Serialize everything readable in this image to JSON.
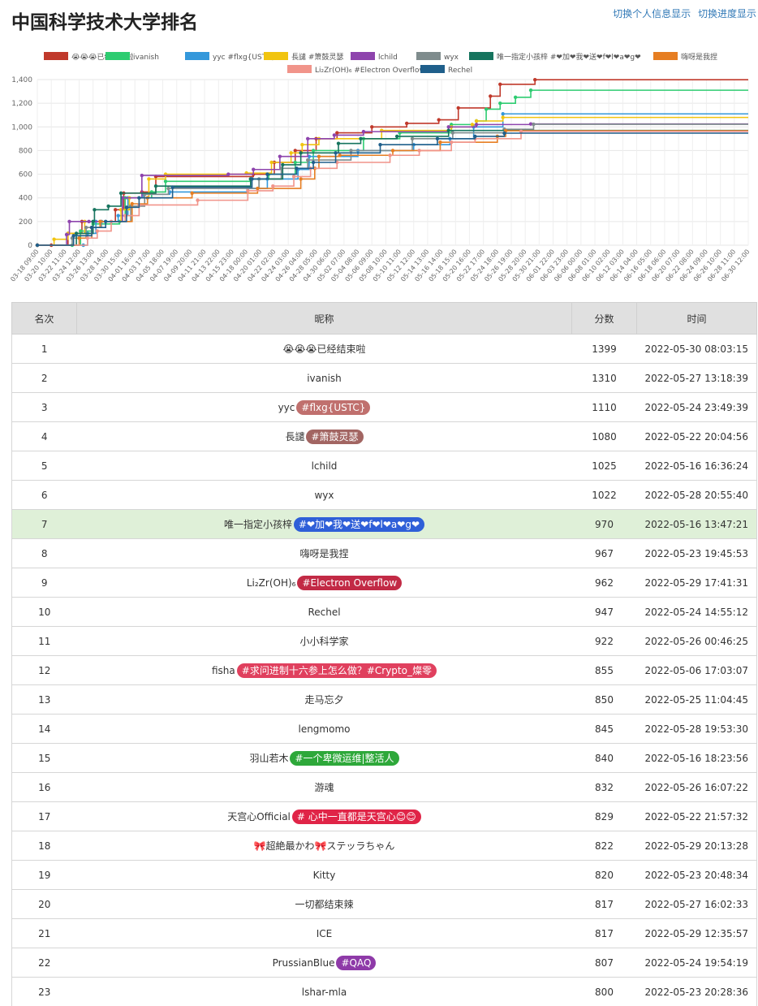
{
  "header": {
    "title": "中国科学技术大学排名",
    "link_info": "切换个人信息显示",
    "link_progress": "切换进度显示"
  },
  "table": {
    "columns": [
      "名次",
      "昵称",
      "分数",
      "时间"
    ],
    "rows": [
      {
        "rank": "1",
        "name": "😭😭😭已经结束啦",
        "badge": "",
        "badge_color": "",
        "score": "1399",
        "time": "2022-05-30 08:03:15"
      },
      {
        "rank": "2",
        "name": "ivanish",
        "badge": "",
        "badge_color": "",
        "score": "1310",
        "time": "2022-05-27 13:18:39"
      },
      {
        "rank": "3",
        "name": "yyc",
        "badge": "#flxg{USTC}",
        "badge_color": "#c0706e",
        "score": "1110",
        "time": "2022-05-24 23:49:39"
      },
      {
        "rank": "4",
        "name": "長譴",
        "badge": "#箫鼓灵瑟",
        "badge_color": "#a26562",
        "score": "1080",
        "time": "2022-05-22 20:04:56"
      },
      {
        "rank": "5",
        "name": "lchild",
        "badge": "",
        "badge_color": "",
        "score": "1025",
        "time": "2022-05-16 16:36:24"
      },
      {
        "rank": "6",
        "name": "wyx",
        "badge": "",
        "badge_color": "",
        "score": "1022",
        "time": "2022-05-28 20:55:40"
      },
      {
        "rank": "7",
        "name": "唯一指定小孩梓",
        "badge": "#❤加❤我❤送❤f❤l❤a❤g❤",
        "badge_color": "#2f5fd8",
        "score": "970",
        "time": "2022-05-16 13:47:21",
        "highlight": true
      },
      {
        "rank": "8",
        "name": "嗨呀是我捏",
        "badge": "",
        "badge_color": "",
        "score": "967",
        "time": "2022-05-23 19:45:53"
      },
      {
        "rank": "9",
        "name": "Li₂Zr(OH)₆",
        "badge": "#Electron Overflow",
        "badge_color": "#c22a45",
        "score": "962",
        "time": "2022-05-29 17:41:31"
      },
      {
        "rank": "10",
        "name": "Rechel",
        "badge": "",
        "badge_color": "",
        "score": "947",
        "time": "2022-05-24 14:55:12"
      },
      {
        "rank": "11",
        "name": "小小科学家",
        "badge": "",
        "badge_color": "",
        "score": "922",
        "time": "2022-05-26 00:46:25"
      },
      {
        "rank": "12",
        "name": "fisha",
        "badge": "#求问进制十六参上怎么做？#Crypto_燦零",
        "badge_color": "#e0405e",
        "score": "855",
        "time": "2022-05-06 17:03:07"
      },
      {
        "rank": "13",
        "name": "走马忘夕",
        "badge": "",
        "badge_color": "",
        "score": "850",
        "time": "2022-05-25 11:04:45"
      },
      {
        "rank": "14",
        "name": "lengmomo",
        "badge": "",
        "badge_color": "",
        "score": "845",
        "time": "2022-05-28 19:53:30"
      },
      {
        "rank": "15",
        "name": "羽山若木",
        "badge": "#一个卑微运维|整活人",
        "badge_color": "#2ea83a",
        "score": "840",
        "time": "2022-05-16 18:23:56"
      },
      {
        "rank": "16",
        "name": "游魂",
        "badge": "",
        "badge_color": "",
        "score": "832",
        "time": "2022-05-26 16:07:22"
      },
      {
        "rank": "17",
        "name": "天宫心Official",
        "badge": "# 心中一直都是天宫心😊😊",
        "badge_color": "#e02447",
        "score": "829",
        "time": "2022-05-22 21:57:32"
      },
      {
        "rank": "18",
        "name": "🎀超絶最かわ🎀ステッラちゃん",
        "badge": "",
        "badge_color": "",
        "score": "822",
        "time": "2022-05-29 20:13:28"
      },
      {
        "rank": "19",
        "name": "Kitty",
        "badge": "",
        "badge_color": "",
        "score": "820",
        "time": "2022-05-23 20:48:34"
      },
      {
        "rank": "20",
        "name": "一切都结束辣",
        "badge": "",
        "badge_color": "",
        "score": "817",
        "time": "2022-05-27 16:02:33"
      },
      {
        "rank": "21",
        "name": "ICE",
        "badge": "",
        "badge_color": "",
        "score": "817",
        "time": "2022-05-29 12:35:57"
      },
      {
        "rank": "22",
        "name": "PrussianBlue",
        "badge": "#QAQ",
        "badge_color": "#8e3aa8",
        "score": "807",
        "time": "2022-05-24 19:54:19"
      },
      {
        "rank": "23",
        "name": "lshar-mla",
        "badge": "",
        "badge_color": "",
        "score": "800",
        "time": "2022-05-23 20:28:36"
      }
    ]
  },
  "chart_data": {
    "type": "line",
    "ylim": [
      0,
      1400
    ],
    "yticks": [
      "0",
      "200",
      "400",
      "600",
      "800",
      "1,000",
      "1,200",
      "1,400"
    ],
    "xticks": [
      "03-18 09:00",
      "03-20 10:00",
      "03-22 11:00",
      "03-24 12:00",
      "03-26 13:00",
      "03-28 14:00",
      "03-30 15:00",
      "04-01 16:00",
      "04-03 17:00",
      "04-05 18:00",
      "04-07 19:00",
      "04-09 20:00",
      "04-11 21:00",
      "04-13 22:00",
      "04-15 23:00",
      "04-18 00:00",
      "04-20 01:00",
      "04-22 02:00",
      "04-24 03:00",
      "04-26 04:00",
      "04-28 05:00",
      "04-30 06:00",
      "05-02 07:00",
      "05-04 08:00",
      "05-06 09:00",
      "05-08 10:00",
      "05-10 11:00",
      "05-12 12:00",
      "05-14 13:00",
      "05-16 14:00",
      "05-18 15:00",
      "05-20 16:00",
      "05-22 17:00",
      "05-24 18:00",
      "05-26 19:00",
      "05-28 20:00",
      "05-30 21:00",
      "06-01 22:00",
      "06-03 23:00",
      "06-06 00:00",
      "06-08 01:00",
      "06-10 02:00",
      "06-12 03:00",
      "06-14 04:00",
      "06-16 05:00",
      "06-18 06:00",
      "06-20 07:00",
      "06-22 08:00",
      "06-24 09:00",
      "06-26 10:00",
      "06-28 11:00",
      "06-30 12:00"
    ],
    "legend_placement": "top",
    "grid": true,
    "series": [
      {
        "name": "😭😭😭已经结束啦",
        "color": "#c0392b",
        "points": [
          [
            0,
            0
          ],
          [
            1,
            0
          ],
          [
            2.2,
            100
          ],
          [
            3.2,
            200
          ],
          [
            5.6,
            300
          ],
          [
            6.2,
            440
          ],
          [
            7.5,
            450
          ],
          [
            8.5,
            580
          ],
          [
            15.5,
            600
          ],
          [
            17,
            700
          ],
          [
            18.5,
            800
          ],
          [
            20,
            900
          ],
          [
            21.5,
            950
          ],
          [
            24,
            1000
          ],
          [
            26.5,
            1030
          ],
          [
            28.8,
            1060
          ],
          [
            30.2,
            1160
          ],
          [
            32.5,
            1260
          ],
          [
            33.2,
            1360
          ],
          [
            35.7,
            1399
          ],
          [
            51,
            1399
          ]
        ]
      },
      {
        "name": "ivanish",
        "color": "#2ecc71",
        "points": [
          [
            0,
            0
          ],
          [
            2.5,
            0
          ],
          [
            3.1,
            120
          ],
          [
            4,
            180
          ],
          [
            5.9,
            200
          ],
          [
            6.3,
            400
          ],
          [
            8.2,
            450
          ],
          [
            9.2,
            540
          ],
          [
            15.3,
            560
          ],
          [
            16.6,
            600
          ],
          [
            18.5,
            700
          ],
          [
            19.8,
            800
          ],
          [
            23.4,
            900
          ],
          [
            26,
            950
          ],
          [
            29.7,
            1020
          ],
          [
            31.5,
            1050
          ],
          [
            32.2,
            1150
          ],
          [
            33.2,
            1200
          ],
          [
            34.3,
            1250
          ],
          [
            35.4,
            1310
          ],
          [
            51,
            1310
          ]
        ]
      },
      {
        "name": "yyc #flxg{USTC}",
        "color": "#3498db",
        "points": [
          [
            0,
            0
          ],
          [
            3.3,
            0
          ],
          [
            3.6,
            100
          ],
          [
            4.2,
            200
          ],
          [
            5.8,
            250
          ],
          [
            6.5,
            400
          ],
          [
            7.6,
            430
          ],
          [
            9.5,
            450
          ],
          [
            15.1,
            480
          ],
          [
            16.5,
            560
          ],
          [
            18.7,
            640
          ],
          [
            19.5,
            750
          ],
          [
            23,
            800
          ],
          [
            27,
            850
          ],
          [
            29.6,
            900
          ],
          [
            31.3,
            1000
          ],
          [
            33.4,
            1110
          ],
          [
            51,
            1110
          ]
        ]
      },
      {
        "name": "長譴 #箫鼓灵瑟",
        "color": "#f1c40f",
        "points": [
          [
            0,
            0
          ],
          [
            1.2,
            50
          ],
          [
            2.2,
            100
          ],
          [
            3.4,
            200
          ],
          [
            6,
            300
          ],
          [
            6.6,
            400
          ],
          [
            8,
            560
          ],
          [
            9.2,
            600
          ],
          [
            15,
            610
          ],
          [
            16.8,
            700
          ],
          [
            18.2,
            780
          ],
          [
            19,
            850
          ],
          [
            20.2,
            900
          ],
          [
            24.7,
            970
          ],
          [
            29.7,
            1000
          ],
          [
            31.2,
            1020
          ],
          [
            31.5,
            1050
          ],
          [
            33.4,
            1080
          ],
          [
            51,
            1080
          ]
        ]
      },
      {
        "name": "lchild",
        "color": "#8e44ad",
        "points": [
          [
            0,
            0
          ],
          [
            2.1,
            90
          ],
          [
            2.3,
            200
          ],
          [
            3.7,
            200
          ],
          [
            6.1,
            400
          ],
          [
            7.5,
            590
          ],
          [
            13.7,
            600
          ],
          [
            15.5,
            640
          ],
          [
            17.4,
            750
          ],
          [
            19.4,
            900
          ],
          [
            21.3,
            930
          ],
          [
            23.4,
            960
          ],
          [
            29.5,
            1000
          ],
          [
            31.5,
            1020
          ],
          [
            35.4,
            1025
          ],
          [
            51,
            1025
          ]
        ]
      },
      {
        "name": "wyx",
        "color": "#7f8c8d",
        "points": [
          [
            0,
            0
          ],
          [
            2.5,
            60
          ],
          [
            3.5,
            150
          ],
          [
            4.6,
            200
          ],
          [
            6.7,
            330
          ],
          [
            7.7,
            430
          ],
          [
            9.4,
            480
          ],
          [
            15.9,
            560
          ],
          [
            17.5,
            650
          ],
          [
            19.4,
            720
          ],
          [
            22.5,
            800
          ],
          [
            26.9,
            900
          ],
          [
            29.8,
            950
          ],
          [
            33.5,
            980
          ],
          [
            35.6,
            1022
          ],
          [
            51,
            1022
          ]
        ]
      },
      {
        "name": "唯一指定小孩梓 #❤加❤我❤送❤f❤l❤a❤g❤",
        "color": "#16745e",
        "points": [
          [
            0,
            0
          ],
          [
            2.8,
            100
          ],
          [
            4,
            200
          ],
          [
            4.1,
            300
          ],
          [
            5.1,
            330
          ],
          [
            6,
            440
          ],
          [
            8.5,
            500
          ],
          [
            15.3,
            560
          ],
          [
            17.6,
            680
          ],
          [
            18.9,
            780
          ],
          [
            21.6,
            860
          ],
          [
            23.2,
            900
          ],
          [
            25.8,
            920
          ],
          [
            29.5,
            970
          ],
          [
            51,
            970
          ]
        ]
      },
      {
        "name": "嗨呀是我捏",
        "color": "#e67e22",
        "points": [
          [
            0,
            0
          ],
          [
            3,
            60
          ],
          [
            3.9,
            150
          ],
          [
            4.5,
            200
          ],
          [
            6.8,
            350
          ],
          [
            7.9,
            400
          ],
          [
            11.1,
            440
          ],
          [
            15.8,
            480
          ],
          [
            18.9,
            560
          ],
          [
            19.9,
            650
          ],
          [
            20.2,
            750
          ],
          [
            21.7,
            760
          ],
          [
            25.5,
            800
          ],
          [
            28.9,
            870
          ],
          [
            33,
            920
          ],
          [
            33.6,
            967
          ],
          [
            51,
            967
          ]
        ]
      },
      {
        "name": "Li₂Zr(OH)₆ #Electron Overflow",
        "color": "#f1948a",
        "points": [
          [
            0,
            0
          ],
          [
            3.6,
            60
          ],
          [
            4.3,
            120
          ],
          [
            5.3,
            200
          ],
          [
            6.3,
            250
          ],
          [
            7.3,
            340
          ],
          [
            11.5,
            380
          ],
          [
            15.1,
            460
          ],
          [
            16.9,
            500
          ],
          [
            18.4,
            580
          ],
          [
            19.6,
            650
          ],
          [
            21.5,
            700
          ],
          [
            25.3,
            760
          ],
          [
            27.4,
            800
          ],
          [
            29.7,
            870
          ],
          [
            31.4,
            900
          ],
          [
            34.7,
            962
          ],
          [
            51,
            962
          ]
        ]
      },
      {
        "name": "Rechel",
        "color": "#1f5f8b",
        "points": [
          [
            0,
            0
          ],
          [
            2.6,
            80
          ],
          [
            3.9,
            150
          ],
          [
            4.9,
            200
          ],
          [
            6.4,
            320
          ],
          [
            7.3,
            400
          ],
          [
            9.7,
            490
          ],
          [
            15.4,
            560
          ],
          [
            16.5,
            600
          ],
          [
            18.6,
            650
          ],
          [
            19.8,
            700
          ],
          [
            21.4,
            780
          ],
          [
            24.6,
            850
          ],
          [
            28.7,
            900
          ],
          [
            31.4,
            920
          ],
          [
            33.5,
            947
          ],
          [
            51,
            947
          ]
        ]
      }
    ]
  }
}
